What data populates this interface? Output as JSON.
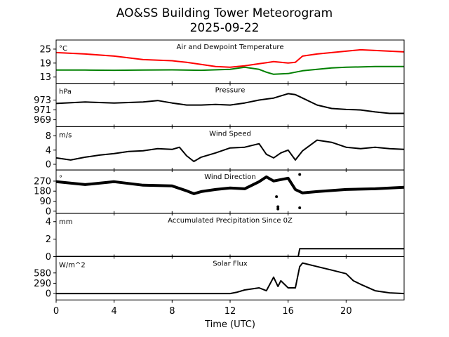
{
  "chart_data": {
    "type": "line",
    "title": "AO&SS Building Tower Meteorogram",
    "subtitle": "2025-09-22",
    "xlabel": "Time (UTC)",
    "xlim": [
      0,
      24
    ],
    "xticks": [
      0,
      4,
      8,
      12,
      16,
      20
    ],
    "panels": [
      {
        "title": "Air and Dewpoint Temperature",
        "unit": "°C",
        "ylim": [
          10.3,
          28.9
        ],
        "yticks": [
          13,
          19,
          25
        ],
        "series": [
          {
            "name": "Air Temperature",
            "color": "#ff0000",
            "points": [
              [
                0,
                23.5
              ],
              [
                2,
                22.9
              ],
              [
                4,
                22
              ],
              [
                6,
                20.5
              ],
              [
                8,
                20
              ],
              [
                9,
                19.3
              ],
              [
                10,
                18.4
              ],
              [
                11,
                17.5
              ],
              [
                12,
                17.2
              ],
              [
                13,
                17.8
              ],
              [
                14,
                18.7
              ],
              [
                15,
                19.6
              ],
              [
                16,
                19
              ],
              [
                16.5,
                19.3
              ],
              [
                17,
                22
              ],
              [
                18,
                22.9
              ],
              [
                19,
                23.5
              ],
              [
                20,
                24.1
              ],
              [
                21,
                24.7
              ],
              [
                22,
                24.4
              ],
              [
                23,
                24.1
              ],
              [
                24,
                23.8
              ]
            ]
          },
          {
            "name": "Dewpoint",
            "color": "#008000",
            "points": [
              [
                0,
                16
              ],
              [
                2,
                16
              ],
              [
                4,
                15.9
              ],
              [
                6,
                16
              ],
              [
                8,
                16.1
              ],
              [
                10,
                15.9
              ],
              [
                12,
                16.3
              ],
              [
                13,
                17.2
              ],
              [
                14,
                16.3
              ],
              [
                14.5,
                15.1
              ],
              [
                15,
                14.2
              ],
              [
                16,
                14.5
              ],
              [
                16.5,
                15.1
              ],
              [
                17,
                15.7
              ],
              [
                18,
                16.3
              ],
              [
                19,
                16.9
              ],
              [
                20,
                17.2
              ],
              [
                22,
                17.5
              ],
              [
                24,
                17.5
              ]
            ]
          }
        ]
      },
      {
        "title": "Pressure",
        "unit": "hPa",
        "ylim": [
          967.6,
          976.4
        ],
        "yticks": [
          969,
          971,
          973
        ],
        "series": [
          {
            "name": "Pressure",
            "color": "#000000",
            "points": [
              [
                0,
                972.3
              ],
              [
                2,
                972.6
              ],
              [
                4,
                972.4
              ],
              [
                6,
                972.6
              ],
              [
                7,
                972.9
              ],
              [
                8,
                972.4
              ],
              [
                9,
                972
              ],
              [
                10,
                972
              ],
              [
                11,
                972.1
              ],
              [
                12,
                972
              ],
              [
                13,
                972.4
              ],
              [
                14,
                973
              ],
              [
                15,
                973.4
              ],
              [
                16,
                974.3
              ],
              [
                16.5,
                974.1
              ],
              [
                17,
                973.4
              ],
              [
                18,
                972
              ],
              [
                19,
                971.3
              ],
              [
                20,
                971.1
              ],
              [
                21,
                971
              ],
              [
                22,
                970.6
              ],
              [
                23,
                970.3
              ],
              [
                24,
                970.3
              ]
            ]
          }
        ]
      },
      {
        "title": "Wind Speed",
        "unit": "m/s",
        "ylim": [
          -1.6,
          10.6
        ],
        "yticks": [
          0,
          4,
          8
        ],
        "series": [
          {
            "name": "Wind Speed",
            "color": "#000000",
            "points": [
              [
                0,
                1.8
              ],
              [
                1,
                1.2
              ],
              [
                2,
                2
              ],
              [
                3,
                2.6
              ],
              [
                4,
                3
              ],
              [
                5,
                3.6
              ],
              [
                6,
                3.8
              ],
              [
                7,
                4.4
              ],
              [
                8,
                4.2
              ],
              [
                8.5,
                4.8
              ],
              [
                9,
                2.4
              ],
              [
                9.5,
                0.8
              ],
              [
                10,
                2
              ],
              [
                11,
                3.2
              ],
              [
                12,
                4.6
              ],
              [
                13,
                4.8
              ],
              [
                14,
                5.8
              ],
              [
                14.5,
                2.8
              ],
              [
                15,
                1.8
              ],
              [
                15.5,
                3.2
              ],
              [
                16,
                4
              ],
              [
                16.5,
                1.2
              ],
              [
                17,
                3.8
              ],
              [
                18,
                6.8
              ],
              [
                19,
                6.2
              ],
              [
                20,
                4.8
              ],
              [
                21,
                4.4
              ],
              [
                22,
                4.8
              ],
              [
                23,
                4.4
              ],
              [
                24,
                4.2
              ]
            ]
          }
        ]
      },
      {
        "title": "Wind Direction",
        "unit": "°",
        "ylim": [
          -19,
          370
        ],
        "yticks": [
          0,
          90,
          180,
          270
        ],
        "markers": true,
        "series": [
          {
            "name": "Wind Direction",
            "color": "#000000",
            "points": [
              [
                0,
                265
              ],
              [
                2,
                239
              ],
              [
                4,
                265
              ],
              [
                6,
                233
              ],
              [
                8,
                227
              ],
              [
                9,
                183
              ],
              [
                9.5,
                157
              ],
              [
                10,
                176
              ],
              [
                11,
                195
              ],
              [
                12,
                208
              ],
              [
                13,
                201
              ],
              [
                14,
                265
              ],
              [
                14.5,
                308
              ],
              [
                15,
                271
              ],
              [
                16,
                296
              ],
              [
                16.5,
                195
              ],
              [
                17,
                164
              ],
              [
                18,
                176
              ],
              [
                20,
                195
              ],
              [
                22,
                201
              ],
              [
                24,
                214
              ]
            ],
            "outliers": [
              [
                15.3,
                40
              ],
              [
                15.3,
                20
              ],
              [
                15.2,
                130
              ],
              [
                16.8,
                30
              ],
              [
                16.8,
                330
              ]
            ]
          }
        ]
      },
      {
        "title": "Accumulated Precipitation Since 0Z",
        "unit": "mm",
        "ylim": [
          0,
          4.96
        ],
        "yticks": [
          0,
          2,
          4
        ],
        "series": [
          {
            "name": "Precipitation",
            "color": "#000000",
            "points": [
              [
                0,
                0
              ],
              [
                16.7,
                0
              ],
              [
                16.8,
                0.9
              ],
              [
                24,
                0.9
              ]
            ]
          }
        ]
      },
      {
        "title": "Solar Flux",
        "unit": "W/m^2",
        "ylim": [
          -180,
          1040
        ],
        "yticks": [
          0,
          290,
          580
        ],
        "series": [
          {
            "name": "Solar Flux",
            "color": "#000000",
            "points": [
              [
                0,
                0
              ],
              [
                12,
                0
              ],
              [
                12.5,
                40
              ],
              [
                13,
                100
              ],
              [
                14,
                160
              ],
              [
                14.5,
                80
              ],
              [
                15,
                460
              ],
              [
                15.3,
                200
              ],
              [
                15.5,
                360
              ],
              [
                16,
                160
              ],
              [
                16.5,
                160
              ],
              [
                16.8,
                760
              ],
              [
                17,
                860
              ],
              [
                18,
                760
              ],
              [
                19,
                660
              ],
              [
                20,
                560
              ],
              [
                20.5,
                360
              ],
              [
                21,
                260
              ],
              [
                22,
                80
              ],
              [
                23,
                20
              ],
              [
                24,
                0
              ]
            ]
          }
        ]
      }
    ]
  }
}
